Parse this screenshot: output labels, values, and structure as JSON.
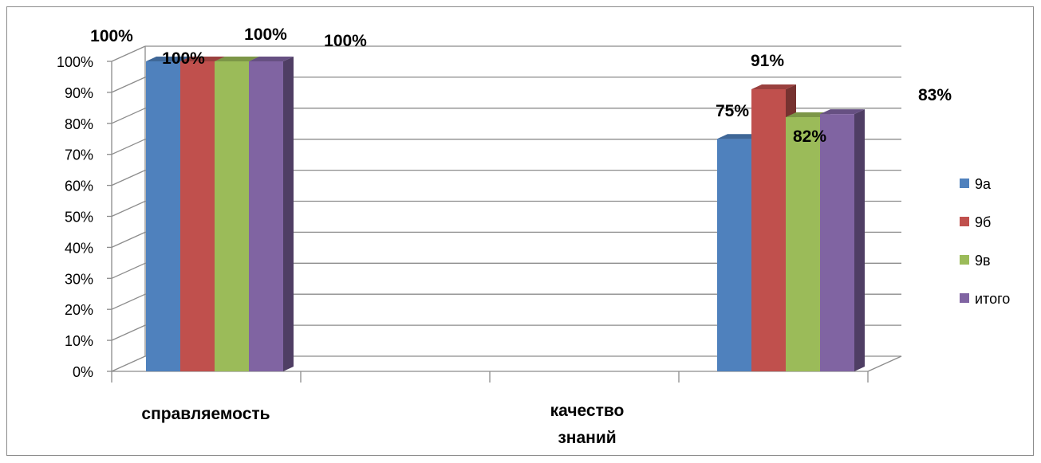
{
  "chart_data": {
    "type": "bar",
    "categories": [
      "справляемость",
      "качество знаний"
    ],
    "category_lines": [
      [
        "справляемость"
      ],
      [
        "качество",
        "знаний"
      ]
    ],
    "series": [
      {
        "name": "9а",
        "values": [
          100,
          75
        ],
        "labels": [
          "100%",
          "75%"
        ],
        "color": "#4f81bd"
      },
      {
        "name": "9б",
        "values": [
          100,
          91
        ],
        "labels": [
          "100%",
          "91%"
        ],
        "color": "#c0504d"
      },
      {
        "name": "9в",
        "values": [
          100,
          82
        ],
        "labels": [
          "100%",
          "82%"
        ],
        "color": "#9bbb59"
      },
      {
        "name": "итого",
        "values": [
          100,
          83
        ],
        "labels": [
          "100%",
          "83%"
        ],
        "color": "#8064a2"
      }
    ],
    "ylim": [
      0,
      100
    ],
    "yticks": [
      "0%",
      "10%",
      "20%",
      "30%",
      "40%",
      "50%",
      "60%",
      "70%",
      "80%",
      "90%",
      "100%"
    ],
    "grid": true,
    "legend": "right",
    "style": "3d clustered column"
  }
}
